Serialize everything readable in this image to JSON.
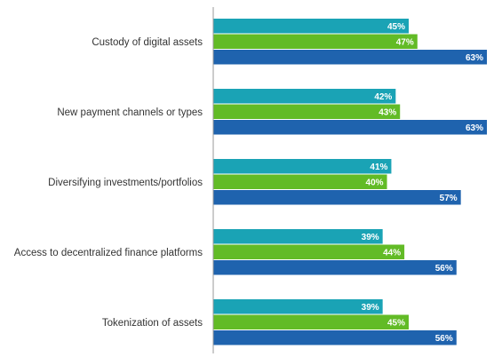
{
  "chart_data": {
    "type": "bar",
    "orientation": "horizontal",
    "categories": [
      "Custody of digital assets",
      "New payment channels or types",
      "Diversifying investments/portfolios",
      "Access to decentralized finance platforms",
      "Tokenization of assets"
    ],
    "series": [
      {
        "color": "#1aa3b5",
        "values": [
          45,
          42,
          41,
          39,
          39
        ]
      },
      {
        "color": "#62bb26",
        "values": [
          47,
          43,
          40,
          44,
          45
        ]
      },
      {
        "color": "#1f63ae",
        "values": [
          63,
          63,
          57,
          56,
          56
        ]
      }
    ],
    "value_suffix": "%",
    "xlim": [
      0,
      63
    ],
    "grid": false,
    "legend": "none"
  }
}
